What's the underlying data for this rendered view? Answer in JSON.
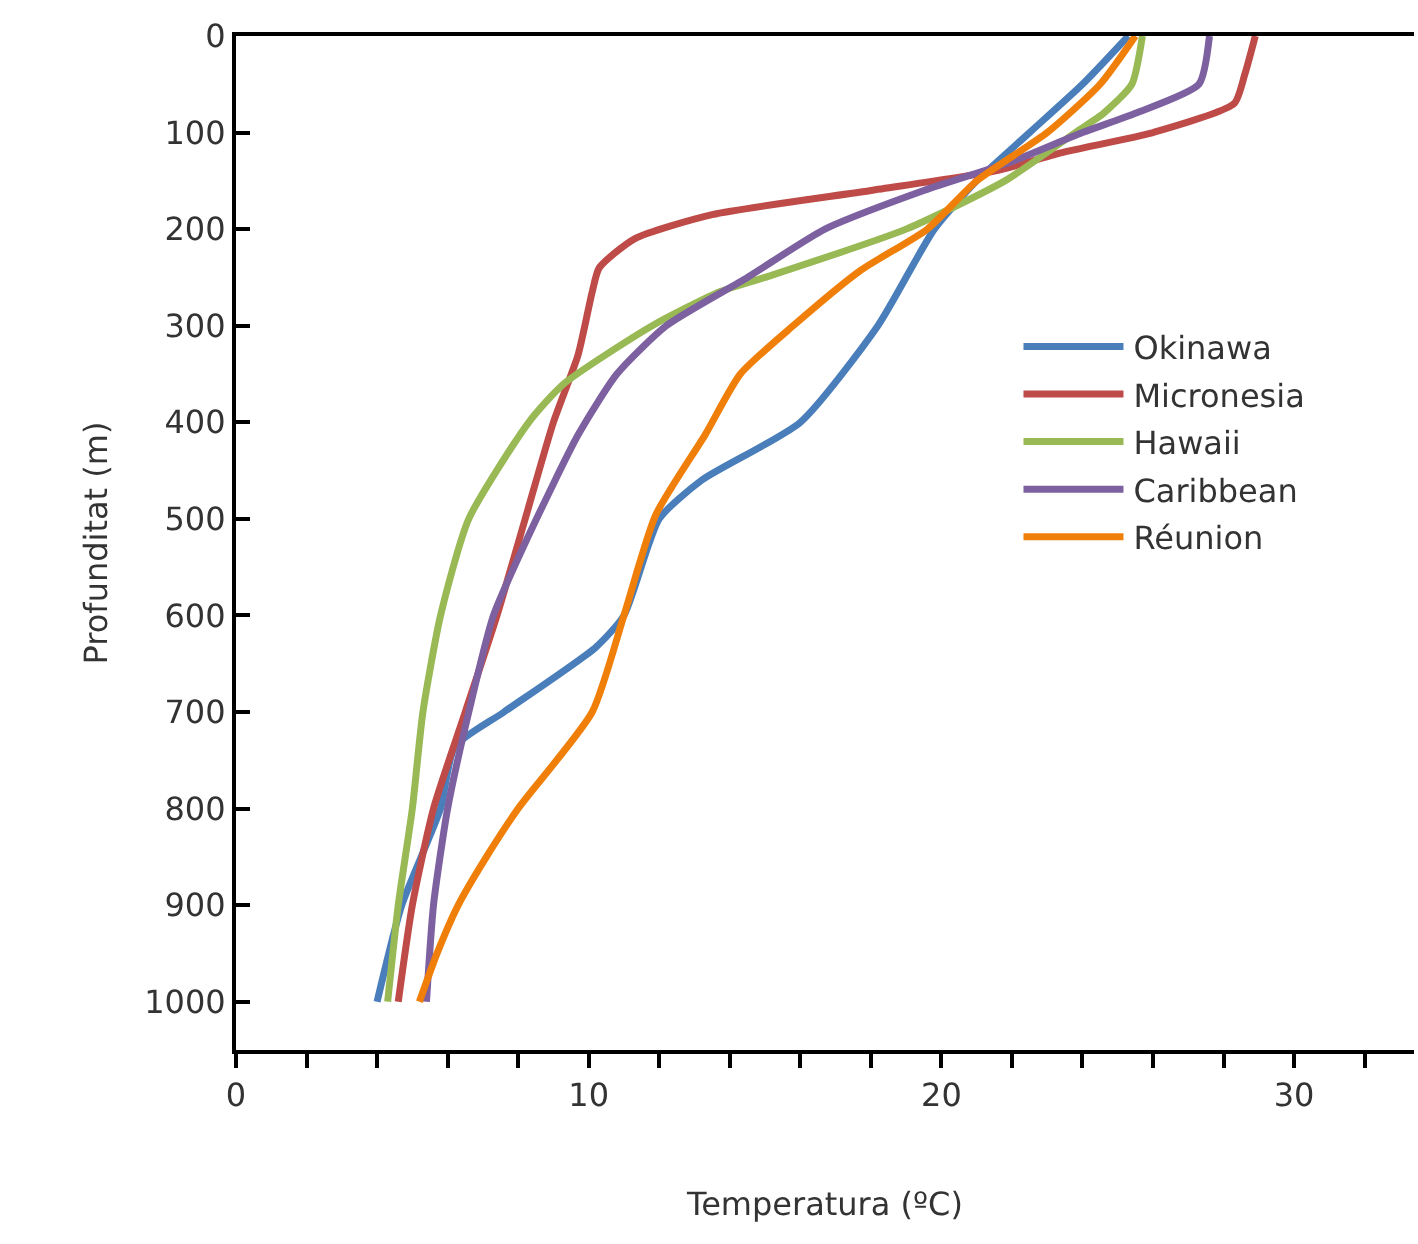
{
  "chart_data": {
    "type": "line",
    "xlabel": "Temperatura (ºC)",
    "ylabel": "Profunditat (m)",
    "xlim": [
      0,
      33.4
    ],
    "xticks": [
      0,
      {
        "value": 2,
        "label": null
      },
      {
        "value": 4,
        "label": null
      },
      {
        "value": 6,
        "label": null
      },
      {
        "value": 8,
        "label": null
      },
      10,
      {
        "value": 12,
        "label": null
      },
      {
        "value": 14,
        "label": null
      },
      {
        "value": 16,
        "label": null
      },
      {
        "value": 18,
        "label": null
      },
      20,
      {
        "value": 22,
        "label": null
      },
      {
        "value": 24,
        "label": null
      },
      {
        "value": 26,
        "label": null
      },
      {
        "value": 28,
        "label": null
      },
      30,
      {
        "value": 32,
        "label": null
      }
    ],
    "ylim": [
      1050,
      0
    ],
    "yticks": [
      0,
      100,
      200,
      300,
      400,
      500,
      600,
      700,
      800,
      900,
      1000
    ],
    "grid": false,
    "legend": "right",
    "marker": "none",
    "line_style": "solid",
    "series": [
      {
        "name": "Okinawa",
        "color": "#4a7ebb",
        "x": [
          25.3,
          24,
          22.5,
          21,
          19.8,
          18.2,
          16,
          13.2,
          12,
          11,
          10.2,
          7.6,
          6.2,
          5.8,
          4.7,
          4.0
        ],
        "values": [
          0,
          50,
          100,
          150,
          200,
          300,
          400,
          460,
          500,
          600,
          633,
          700,
          736,
          800,
          900,
          1000
        ]
      },
      {
        "name": "Micronesia",
        "color": "#be4b48",
        "x": [
          28.9,
          28.6,
          28.3,
          26,
          23.5,
          21.5,
          18,
          13.5,
          11.3,
          10.3,
          10.1,
          9.7,
          9.0,
          8.2,
          7.4,
          6.5,
          5.6,
          5.0,
          4.6
        ],
        "values": [
          0,
          40,
          70,
          100,
          120,
          140,
          160,
          185,
          210,
          240,
          265,
          330,
          400,
          500,
          600,
          700,
          800,
          900,
          1000
        ]
      },
      {
        "name": "Hawaii",
        "color": "#98b954",
        "x": [
          25.7,
          25.4,
          24.6,
          23.8,
          21.8,
          19,
          15,
          13.7,
          11.8,
          9.3,
          8.3,
          6.6,
          5.8,
          5.3,
          5.0,
          4.6,
          4.3
        ],
        "values": [
          0,
          50,
          80,
          100,
          150,
          200,
          250,
          265,
          300,
          360,
          400,
          500,
          600,
          700,
          800,
          900,
          1000
        ]
      },
      {
        "name": "Caribbean",
        "color": "#7d60a0",
        "x": [
          27.6,
          27.3,
          25.5,
          24,
          22,
          19.5,
          16.7,
          14.5,
          12.2,
          10.8,
          9.7,
          8.3,
          7.3,
          6.6,
          6.0,
          5.6,
          5.4
        ],
        "values": [
          0,
          50,
          80,
          100,
          130,
          160,
          200,
          250,
          300,
          350,
          413,
          517,
          600,
          700,
          800,
          900,
          1000
        ]
      },
      {
        "name": "Réunion",
        "color": "#f07f09",
        "x": [
          25.5,
          24.5,
          23,
          21,
          19.6,
          17.7,
          15.8,
          14.3,
          13.3,
          11.9,
          11.0,
          10.1,
          8.0,
          7.1,
          6.3,
          5.7,
          5.2
        ],
        "values": [
          0,
          50,
          100,
          150,
          200,
          243,
          300,
          350,
          413,
          496,
          600,
          700,
          800,
          850,
          900,
          950,
          1000
        ]
      }
    ]
  }
}
